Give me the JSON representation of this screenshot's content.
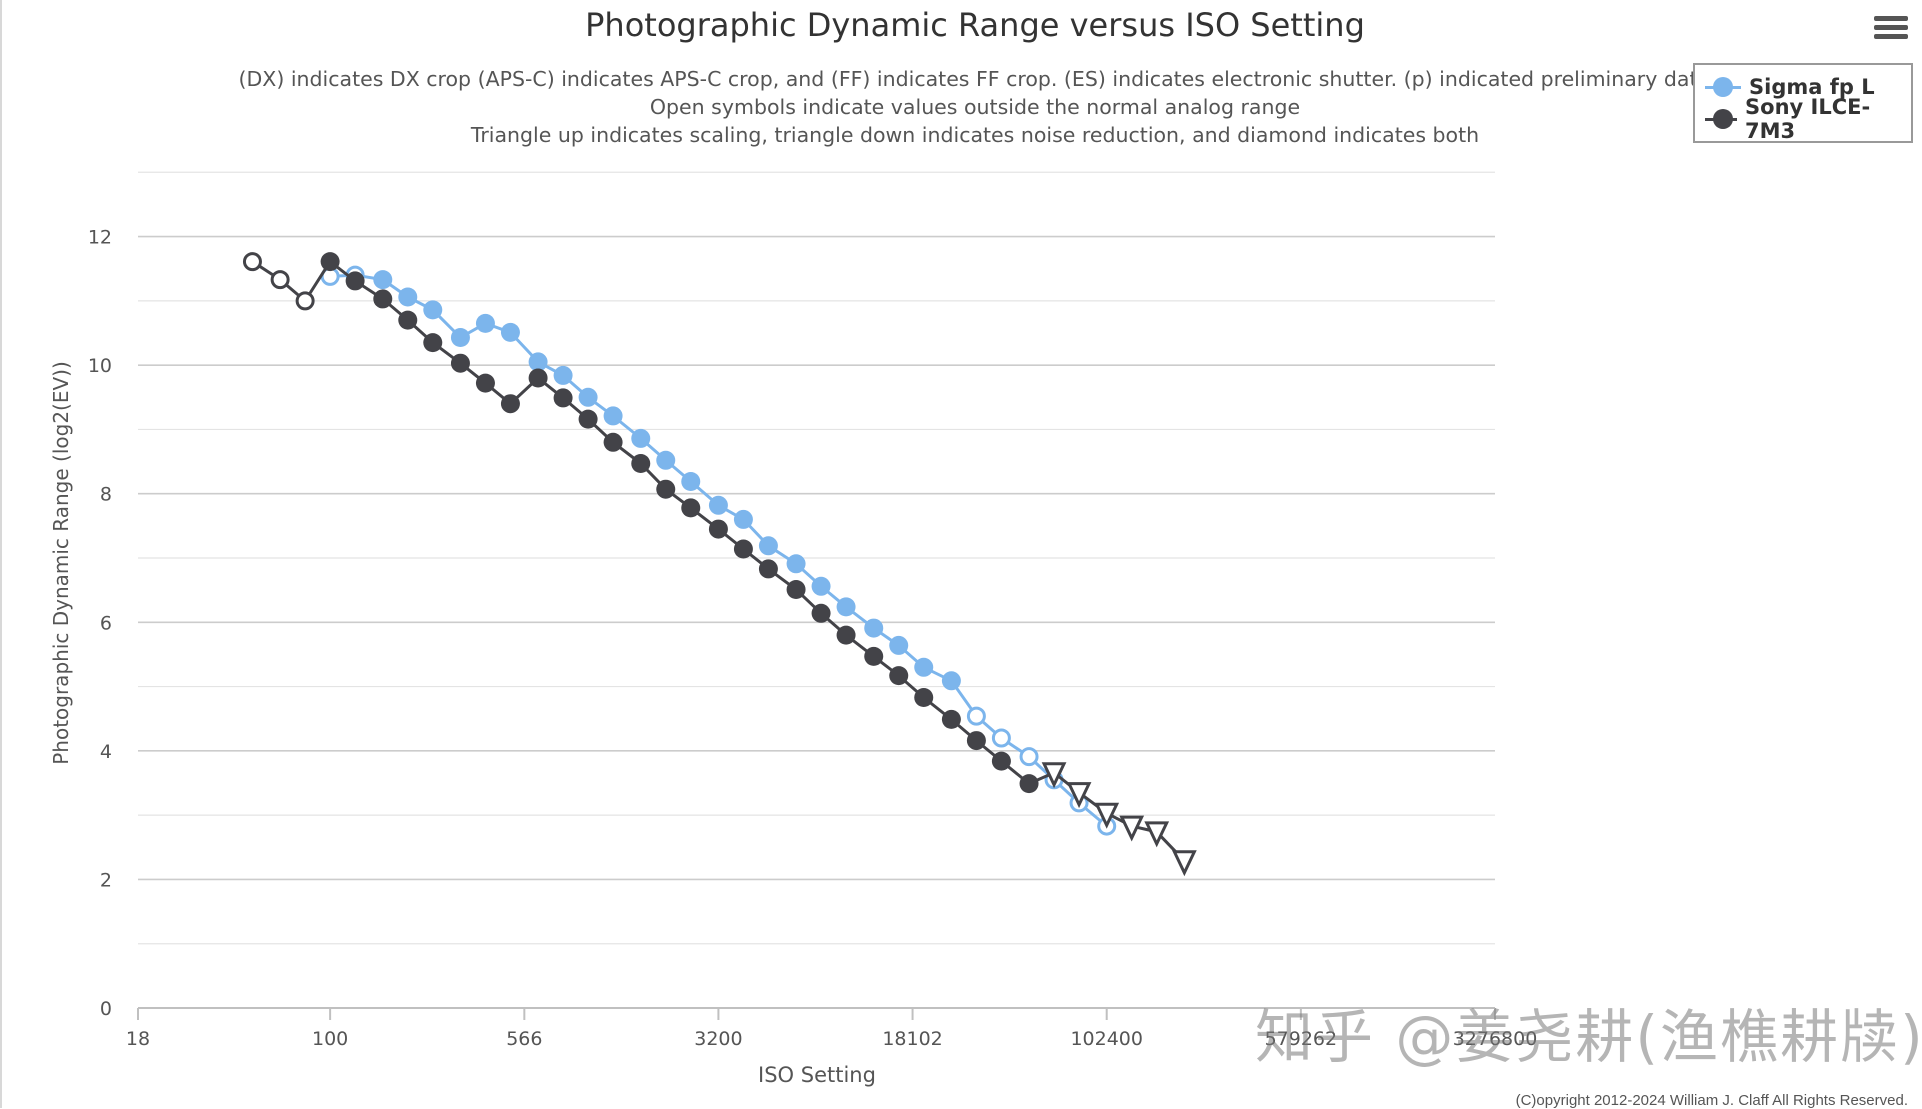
{
  "chart_data": {
    "type": "line",
    "title": "Photographic Dynamic Range versus ISO Setting",
    "subtitle_lines": [
      "(DX) indicates DX crop (APS-C) indicates APS-C crop, and (FF) indicates FF crop. (ES) indicates electronic shutter. (p) indicated preliminary dat",
      "Open symbols indicate values outside the normal analog range",
      "Triangle up indicates scaling, triangle down indicates noise reduction, and diamond indicates both"
    ],
    "xlabel": "ISO Setting",
    "ylabel": "Photographic Dynamic Range (log2(EV))",
    "x_scale": "log",
    "xlim": [
      18,
      3276800
    ],
    "ylim": [
      0,
      13.3
    ],
    "x_ticks": [
      18,
      100,
      566,
      3200,
      18102,
      102400,
      579262,
      3276800
    ],
    "x_tick_labels": [
      "18",
      "100",
      "566",
      "3200",
      "18102",
      "102400",
      "579262",
      "3276800"
    ],
    "y_ticks": [
      0,
      2,
      4,
      6,
      8,
      10,
      12
    ],
    "y_tick_labels": [
      "0",
      "2",
      "4",
      "6",
      "8",
      "10",
      "12"
    ],
    "grid": true,
    "legend_position": "top-right",
    "series": [
      {
        "name": "Sigma fp L",
        "color": "#7cb5ec",
        "points": [
          {
            "iso": 100,
            "dr": 11.38,
            "marker": "open-circle"
          },
          {
            "iso": 125,
            "dr": 11.4,
            "marker": "open-circle"
          },
          {
            "iso": 160,
            "dr": 11.33,
            "marker": "circle"
          },
          {
            "iso": 200,
            "dr": 11.06,
            "marker": "circle"
          },
          {
            "iso": 250,
            "dr": 10.86,
            "marker": "circle"
          },
          {
            "iso": 320,
            "dr": 10.43,
            "marker": "circle"
          },
          {
            "iso": 400,
            "dr": 10.65,
            "marker": "circle"
          },
          {
            "iso": 500,
            "dr": 10.51,
            "marker": "circle"
          },
          {
            "iso": 640,
            "dr": 10.05,
            "marker": "circle"
          },
          {
            "iso": 800,
            "dr": 9.84,
            "marker": "circle"
          },
          {
            "iso": 1000,
            "dr": 9.5,
            "marker": "circle"
          },
          {
            "iso": 1250,
            "dr": 9.21,
            "marker": "circle"
          },
          {
            "iso": 1600,
            "dr": 8.86,
            "marker": "circle"
          },
          {
            "iso": 2000,
            "dr": 8.52,
            "marker": "circle"
          },
          {
            "iso": 2500,
            "dr": 8.19,
            "marker": "circle"
          },
          {
            "iso": 3200,
            "dr": 7.82,
            "marker": "circle"
          },
          {
            "iso": 4000,
            "dr": 7.6,
            "marker": "circle"
          },
          {
            "iso": 5000,
            "dr": 7.19,
            "marker": "circle"
          },
          {
            "iso": 6400,
            "dr": 6.91,
            "marker": "circle"
          },
          {
            "iso": 8000,
            "dr": 6.56,
            "marker": "circle"
          },
          {
            "iso": 10000,
            "dr": 6.24,
            "marker": "circle"
          },
          {
            "iso": 12800,
            "dr": 5.91,
            "marker": "circle"
          },
          {
            "iso": 16000,
            "dr": 5.64,
            "marker": "circle"
          },
          {
            "iso": 20000,
            "dr": 5.3,
            "marker": "circle"
          },
          {
            "iso": 25600,
            "dr": 5.09,
            "marker": "circle"
          },
          {
            "iso": 32000,
            "dr": 4.54,
            "marker": "open-circle"
          },
          {
            "iso": 40000,
            "dr": 4.2,
            "marker": "open-circle"
          },
          {
            "iso": 51200,
            "dr": 3.91,
            "marker": "open-circle"
          },
          {
            "iso": 64000,
            "dr": 3.55,
            "marker": "open-circle"
          },
          {
            "iso": 80000,
            "dr": 3.19,
            "marker": "open-circle"
          },
          {
            "iso": 102400,
            "dr": 2.83,
            "marker": "open-circle"
          }
        ]
      },
      {
        "name": "Sony ILCE-7M3",
        "color": "#434348",
        "points": [
          {
            "iso": 50,
            "dr": 11.61,
            "marker": "open-circle"
          },
          {
            "iso": 64,
            "dr": 11.33,
            "marker": "open-circle"
          },
          {
            "iso": 80,
            "dr": 11.0,
            "marker": "open-circle"
          },
          {
            "iso": 100,
            "dr": 11.61,
            "marker": "circle"
          },
          {
            "iso": 125,
            "dr": 11.31,
            "marker": "circle"
          },
          {
            "iso": 160,
            "dr": 11.03,
            "marker": "circle"
          },
          {
            "iso": 200,
            "dr": 10.7,
            "marker": "circle"
          },
          {
            "iso": 250,
            "dr": 10.35,
            "marker": "circle"
          },
          {
            "iso": 320,
            "dr": 10.03,
            "marker": "circle"
          },
          {
            "iso": 400,
            "dr": 9.72,
            "marker": "circle"
          },
          {
            "iso": 500,
            "dr": 9.4,
            "marker": "circle"
          },
          {
            "iso": 640,
            "dr": 9.8,
            "marker": "circle"
          },
          {
            "iso": 800,
            "dr": 9.49,
            "marker": "circle"
          },
          {
            "iso": 1000,
            "dr": 9.16,
            "marker": "circle"
          },
          {
            "iso": 1250,
            "dr": 8.8,
            "marker": "circle"
          },
          {
            "iso": 1600,
            "dr": 8.47,
            "marker": "circle"
          },
          {
            "iso": 2000,
            "dr": 8.07,
            "marker": "circle"
          },
          {
            "iso": 2500,
            "dr": 7.78,
            "marker": "circle"
          },
          {
            "iso": 3200,
            "dr": 7.45,
            "marker": "circle"
          },
          {
            "iso": 4000,
            "dr": 7.14,
            "marker": "circle"
          },
          {
            "iso": 5000,
            "dr": 6.83,
            "marker": "circle"
          },
          {
            "iso": 6400,
            "dr": 6.51,
            "marker": "circle"
          },
          {
            "iso": 8000,
            "dr": 6.14,
            "marker": "circle"
          },
          {
            "iso": 10000,
            "dr": 5.8,
            "marker": "circle"
          },
          {
            "iso": 12800,
            "dr": 5.47,
            "marker": "circle"
          },
          {
            "iso": 16000,
            "dr": 5.17,
            "marker": "circle"
          },
          {
            "iso": 20000,
            "dr": 4.83,
            "marker": "circle"
          },
          {
            "iso": 25600,
            "dr": 4.49,
            "marker": "circle"
          },
          {
            "iso": 32000,
            "dr": 4.16,
            "marker": "circle"
          },
          {
            "iso": 40000,
            "dr": 3.84,
            "marker": "circle"
          },
          {
            "iso": 51200,
            "dr": 3.49,
            "marker": "circle"
          },
          {
            "iso": 64000,
            "dr": 3.66,
            "marker": "triangle-down"
          },
          {
            "iso": 80000,
            "dr": 3.35,
            "marker": "triangle-down"
          },
          {
            "iso": 102400,
            "dr": 3.03,
            "marker": "triangle-down"
          },
          {
            "iso": 128000,
            "dr": 2.83,
            "marker": "triangle-down"
          },
          {
            "iso": 160000,
            "dr": 2.74,
            "marker": "triangle-down"
          },
          {
            "iso": 204800,
            "dr": 2.29,
            "marker": "triangle-down"
          }
        ]
      }
    ]
  },
  "watermark": "知乎 @姜尧耕(渔樵耕牍)",
  "copyright": "(C)opyright 2012-2024 William J. Claff All Rights Reserved.",
  "icons": {
    "menu": "hamburger-menu-icon"
  }
}
